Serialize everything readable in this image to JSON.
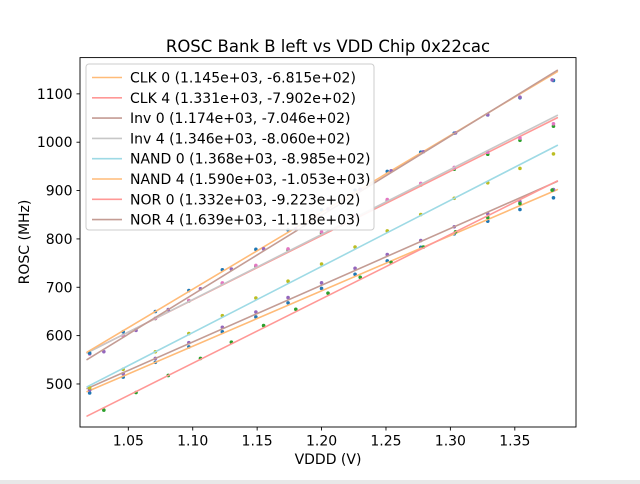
{
  "chart_data": {
    "type": "scatter",
    "title": "ROSC Bank B left vs VDD Chip 0x22cac",
    "xlabel": "VDDD (V)",
    "ylabel": "ROSC (MHz)",
    "grid": false,
    "legend_position": "upper left",
    "xlim": [
      1.0125,
      1.3975
    ],
    "ylim": [
      411,
      1175
    ],
    "x_ticks": [
      {
        "value": 1.05,
        "label": "1.05"
      },
      {
        "value": 1.1,
        "label": "1.10"
      },
      {
        "value": 1.15,
        "label": "1.15"
      },
      {
        "value": 1.2,
        "label": "1.20"
      },
      {
        "value": 1.25,
        "label": "1.25"
      },
      {
        "value": 1.3,
        "label": "1.30"
      },
      {
        "value": 1.35,
        "label": "1.35"
      }
    ],
    "y_ticks": [
      {
        "value": 500,
        "label": "500"
      },
      {
        "value": 600,
        "label": "600"
      },
      {
        "value": 700,
        "label": "700"
      },
      {
        "value": 800,
        "label": "800"
      },
      {
        "value": 900,
        "label": "900"
      },
      {
        "value": 1000,
        "label": "1000"
      },
      {
        "value": 1100,
        "label": "1100"
      }
    ],
    "fit_line_x_range": [
      1.018,
      1.383
    ],
    "series": [
      {
        "name": "CLK 0",
        "legend_label": "CLK 0 (1.145e+03, -6.815e+02)",
        "fit_slope": 1145.0,
        "fit_intercept": -681.5,
        "line_color": "#ffbb78",
        "marker_color": "#1f77b4",
        "x": [
          1.02,
          1.046,
          1.071,
          1.097,
          1.123,
          1.149,
          1.174,
          1.2,
          1.226,
          1.251,
          1.277,
          1.303,
          1.329,
          1.354,
          1.38
        ],
        "y": [
          481.4,
          514.2,
          544.8,
          576.6,
          607.8,
          638.6,
          667.7,
          697.5,
          726.8,
          754.4,
          782.7,
          810.4,
          836.7,
          860.8,
          885.1
        ]
      },
      {
        "name": "CLK 4",
        "legend_label": "CLK 4 (1.331e+03, -7.902e+02)",
        "fit_slope": 1331.0,
        "fit_intercept": -790.2,
        "line_color": "#ff9896",
        "marker_color": "#2ca02c",
        "x": [
          1.02,
          1.046,
          1.071,
          1.097,
          1.123,
          1.149,
          1.174,
          1.2,
          1.226,
          1.251,
          1.277,
          1.303,
          1.329,
          1.354,
          1.38
        ],
        "y": [
          562.4,
          600.0,
          635.3,
          671.9,
          708.0,
          743.6,
          777.4,
          812.0,
          846.1,
          878.4,
          911.5,
          944.1,
          975.2,
          1004.0,
          1033.1
        ]
      },
      {
        "name": "Inv 0",
        "legend_label": "Inv 0 (1.174e+03, -7.046e+02)",
        "fit_slope": 1174.0,
        "fit_intercept": -704.6,
        "line_color": "#c49c94",
        "marker_color": "#9467bd",
        "x": [
          1.02,
          1.046,
          1.071,
          1.097,
          1.123,
          1.149,
          1.174,
          1.2,
          1.226,
          1.251,
          1.277,
          1.303,
          1.329,
          1.354,
          1.38
        ],
        "y": [
          487.9,
          521.4,
          552.8,
          585.3,
          617.3,
          648.8,
          678.7,
          709.2,
          739.2,
          767.6,
          796.6,
          825.1,
          852.1,
          877.0,
          902.0
        ]
      },
      {
        "name": "Inv 4",
        "legend_label": "Inv 4 (1.346e+03, -8.060e+02)",
        "fit_slope": 1346.0,
        "fit_intercept": -806.0,
        "line_color": "#c7c7c7",
        "marker_color": "#e377c2",
        "x": [
          1.02,
          1.046,
          1.071,
          1.097,
          1.123,
          1.149,
          1.174,
          1.2,
          1.226,
          1.251,
          1.277,
          1.303,
          1.329,
          1.354,
          1.38
        ],
        "y": [
          561.9,
          599.9,
          635.6,
          672.6,
          709.1,
          745.1,
          779.2,
          814.2,
          848.7,
          881.3,
          914.8,
          947.8,
          979.3,
          1008.5,
          1038.0
        ]
      },
      {
        "name": "NAND 0",
        "legend_label": "NAND 0 (1.368e+03, -8.985e+02)",
        "fit_slope": 1368.0,
        "fit_intercept": -898.5,
        "line_color": "#9edae5",
        "marker_color": "#bcbd22",
        "x": [
          1.02,
          1.046,
          1.071,
          1.097,
          1.123,
          1.149,
          1.174,
          1.2,
          1.226,
          1.251,
          1.277,
          1.303,
          1.329,
          1.354,
          1.38
        ],
        "y": [
          491.9,
          530.4,
          566.6,
          604.2,
          641.3,
          677.8,
          712.5,
          748.1,
          783.2,
          816.4,
          850.4,
          884.0,
          916.1,
          945.8,
          975.8
        ]
      },
      {
        "name": "NAND 4",
        "legend_label": "NAND 4 (1.590e+03, -1.053e+03)",
        "fit_slope": 1590.0,
        "fit_intercept": -1053.0,
        "line_color": "#ffbb78",
        "marker_color": "#1f77b4",
        "x": [
          1.02,
          1.046,
          1.071,
          1.097,
          1.123,
          1.149,
          1.174,
          1.2,
          1.226,
          1.251,
          1.277,
          1.303,
          1.329,
          1.354,
          1.38
        ],
        "y": [
          563.8,
          608.1,
          649.9,
          693.2,
          736.1,
          778.4,
          818.7,
          860.0,
          900.8,
          939.6,
          979.4,
          1018.8,
          1056.6,
          1091.9,
          1127.7
        ]
      },
      {
        "name": "NOR 0",
        "legend_label": "NOR 0 (1.332e+03, -9.223e+02)",
        "fit_slope": 1332.0,
        "fit_intercept": -922.3,
        "line_color": "#ff9896",
        "marker_color": "#2ca02c",
        "x": [
          1.031,
          1.056,
          1.081,
          1.106,
          1.13,
          1.155,
          1.18,
          1.205,
          1.23,
          1.254,
          1.279,
          1.304,
          1.329,
          1.354,
          1.379
        ],
        "y": [
          446.0,
          482.3,
          517.6,
          552.9,
          586.4,
          620.7,
          654.5,
          687.8,
          720.6,
          751.5,
          783.3,
          814.6,
          844.4,
          873.2,
          901.0
        ]
      },
      {
        "name": "NOR 4",
        "legend_label": "NOR 4 (1.639e+03, -1.118e+03)",
        "fit_slope": 1639.0,
        "fit_intercept": -1118.0,
        "line_color": "#c49c94",
        "marker_color": "#9467bd",
        "x": [
          1.031,
          1.056,
          1.081,
          1.106,
          1.13,
          1.155,
          1.18,
          1.205,
          1.23,
          1.254,
          1.279,
          1.304,
          1.329,
          1.354,
          1.379
        ],
        "y": [
          566.8,
          610.8,
          653.8,
          696.7,
          737.6,
          779.5,
          821.0,
          862.0,
          902.5,
          940.8,
          980.3,
          1019.3,
          1056.7,
          1093.2,
          1128.7
        ]
      }
    ],
    "colors": {
      "axis": "#000000",
      "legend_border": "#cccccc",
      "legend_background": "#ffffff",
      "figure_background": "#ffffff"
    }
  }
}
